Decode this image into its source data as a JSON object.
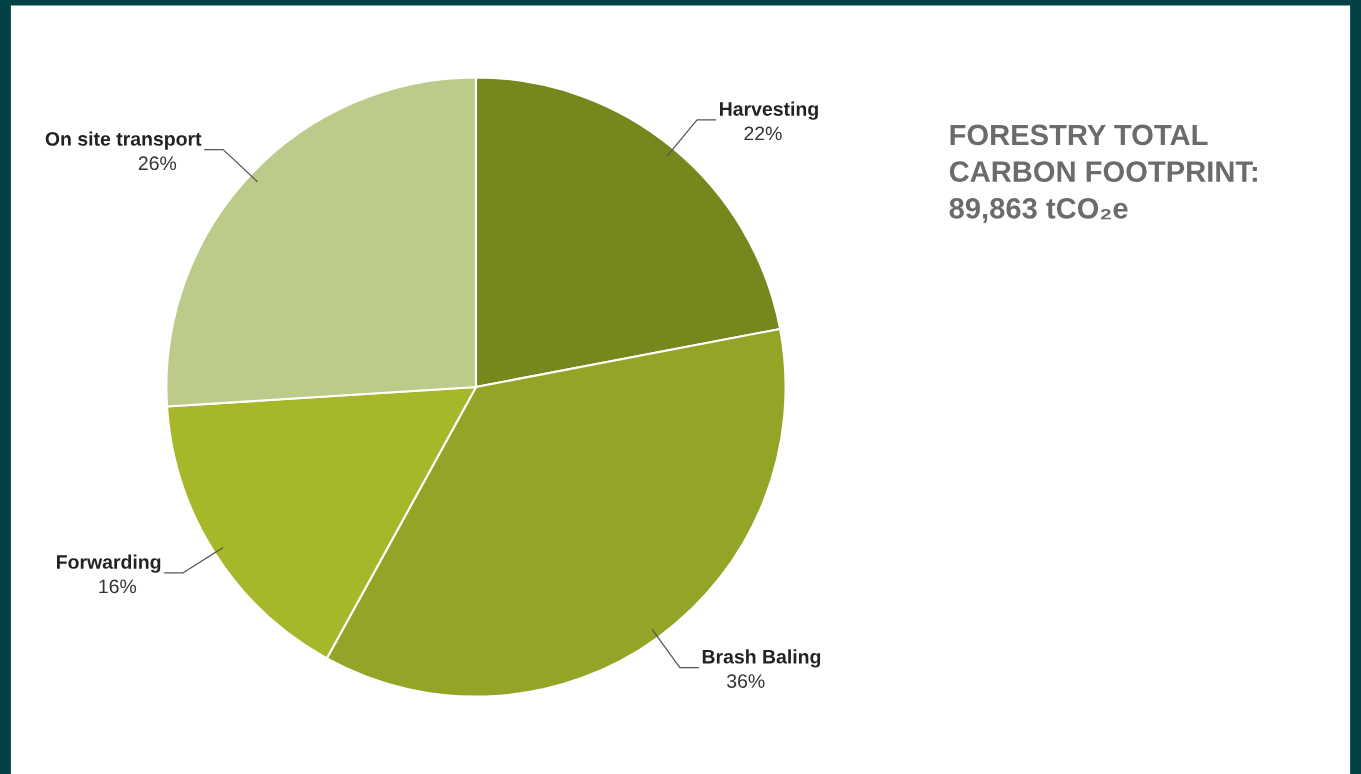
{
  "chart_data": {
    "type": "pie",
    "title": "FORESTRY TOTAL\nCARBON FOOTPRINT:\n89,863 tCO₂e",
    "categories": [
      "Harvesting",
      "Brash Baling",
      "Forwarding",
      "On site transport"
    ],
    "values": [
      22,
      36,
      16,
      26
    ],
    "value_labels": [
      "22%",
      "36%",
      "16%",
      "26%"
    ],
    "colors": [
      "#77871e",
      "#94a426",
      "#a6b72a",
      "#bdcb8a"
    ],
    "legend": false
  }
}
